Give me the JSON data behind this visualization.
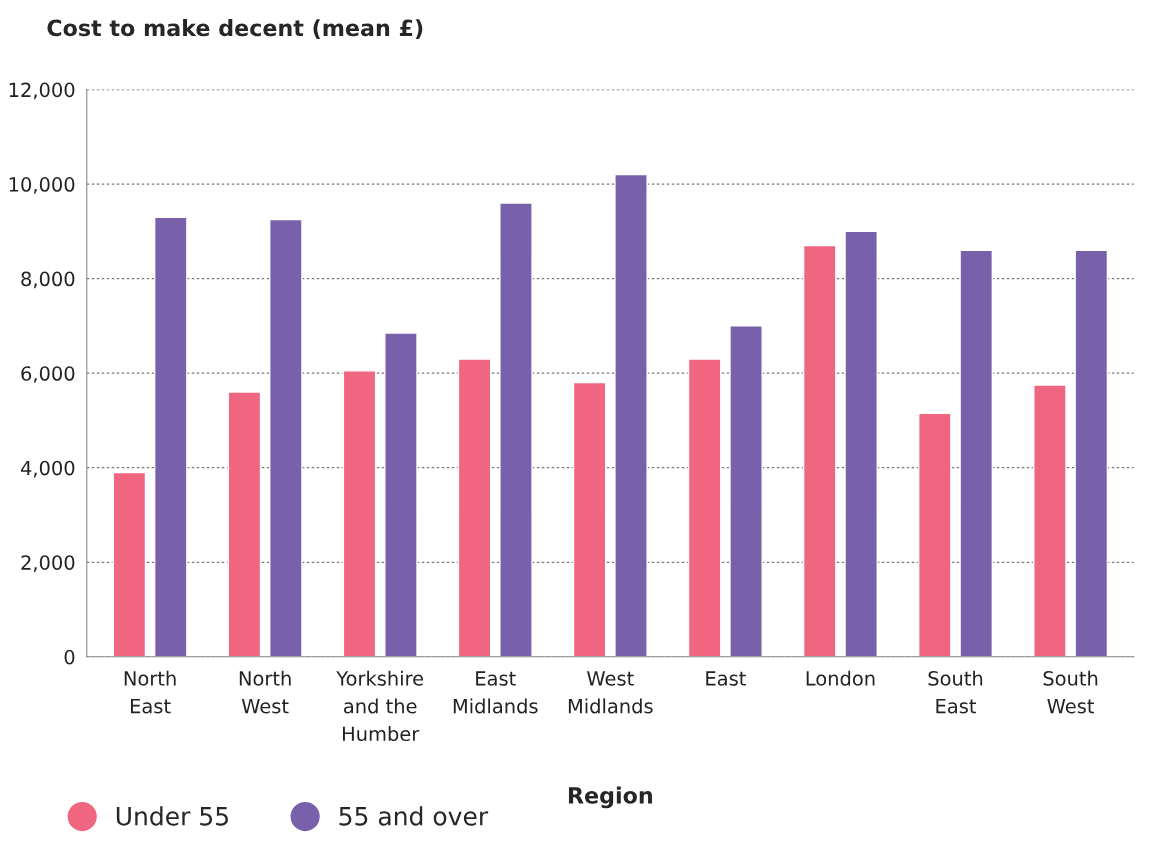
{
  "chart_data": {
    "type": "bar",
    "ylabel": "Cost to make decent (mean £)",
    "xlabel": "Region",
    "categories": [
      "North\nEast",
      "North\nWest",
      "Yorkshire\nand the\nHumber",
      "East\nMidlands",
      "West\nMidlands",
      "East",
      "London",
      "South\nEast",
      "South\nWest"
    ],
    "series": [
      {
        "name": "Under 55",
        "color": "#f0657f",
        "values": [
          3900,
          5600,
          6050,
          6300,
          5800,
          6300,
          8700,
          5150,
          5750
        ]
      },
      {
        "name": "55 and over",
        "color": "#7860aa",
        "values": [
          9300,
          9250,
          6850,
          9600,
          10200,
          7000,
          9000,
          8600,
          8600
        ]
      }
    ],
    "ylim": [
      0,
      12000
    ],
    "yticks": [
      0,
      {
        "value": 2000,
        "label": "2,000"
      },
      {
        "value": 4000,
        "label": "4,000"
      },
      {
        "value": 6000,
        "label": "6,000"
      },
      {
        "value": 8000,
        "label": "8,000"
      },
      {
        "value": 10000,
        "label": "10,000"
      },
      {
        "value": 12000,
        "label": "12,000"
      }
    ],
    "grid": "y",
    "legend": "bottom left"
  }
}
